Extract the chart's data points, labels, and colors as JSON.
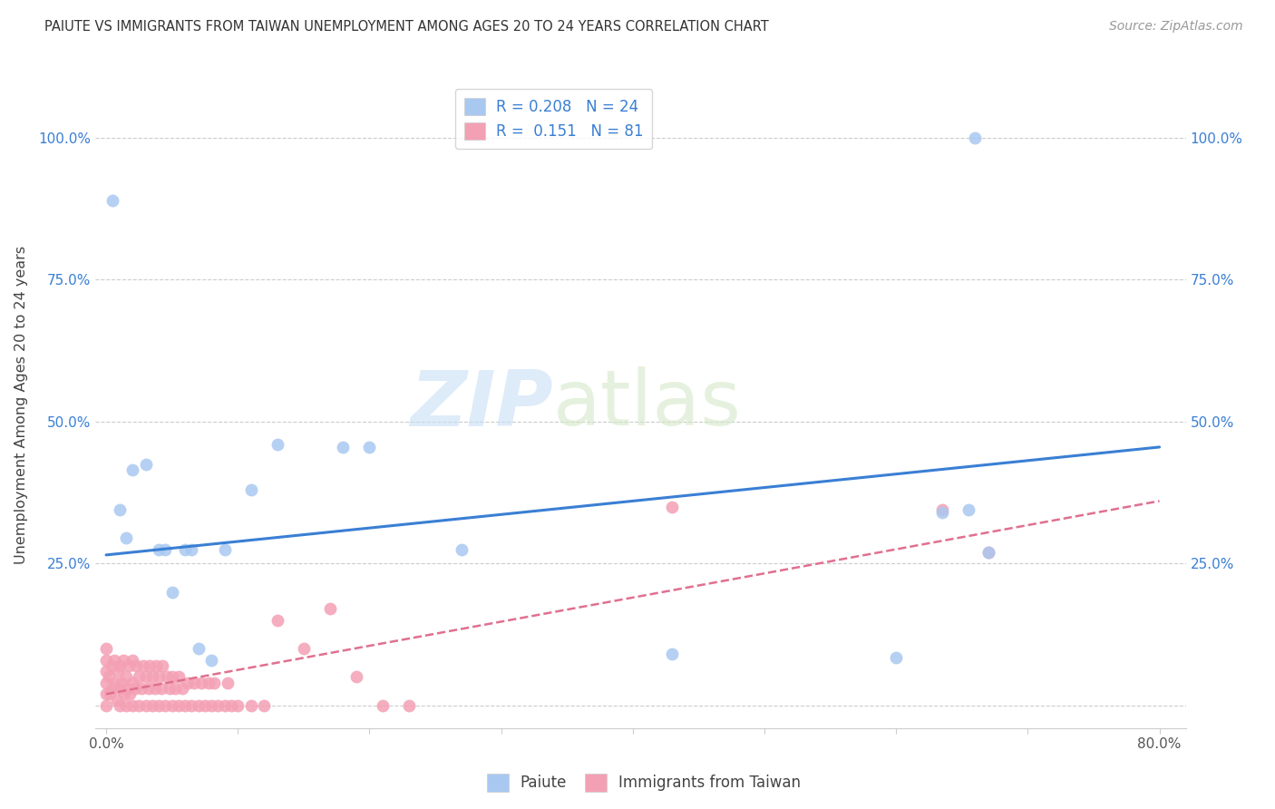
{
  "title": "PAIUTE VS IMMIGRANTS FROM TAIWAN UNEMPLOYMENT AMONG AGES 20 TO 24 YEARS CORRELATION CHART",
  "source": "Source: ZipAtlas.com",
  "ylabel": "Unemployment Among Ages 20 to 24 years",
  "xlim": [
    -0.008,
    0.82
  ],
  "ylim": [
    -0.04,
    1.1
  ],
  "paiute_R": 0.208,
  "paiute_N": 24,
  "taiwan_R": 0.151,
  "taiwan_N": 81,
  "paiute_dot_color": "#a8c8f0",
  "taiwan_dot_color": "#f4a0b4",
  "paiute_line_color": "#3a7fd4",
  "taiwan_line_color": "#e07090",
  "watermark_zip": "ZIP",
  "watermark_atlas": "atlas",
  "blue_line_x0": 0.0,
  "blue_line_y0": 0.265,
  "blue_line_x1": 0.8,
  "blue_line_y1": 0.455,
  "pink_line_x0": 0.0,
  "pink_line_y0": 0.02,
  "pink_line_x1": 0.8,
  "pink_line_y1": 0.36,
  "paiute_x": [
    0.005,
    0.01,
    0.015,
    0.02,
    0.03,
    0.04,
    0.045,
    0.05,
    0.06,
    0.065,
    0.07,
    0.08,
    0.09,
    0.11,
    0.13,
    0.18,
    0.2,
    0.27,
    0.43,
    0.6,
    0.635,
    0.655,
    0.66,
    0.67
  ],
  "paiute_y": [
    0.89,
    0.345,
    0.295,
    0.415,
    0.425,
    0.275,
    0.275,
    0.2,
    0.275,
    0.275,
    0.1,
    0.08,
    0.275,
    0.38,
    0.46,
    0.455,
    0.455,
    0.275,
    0.09,
    0.085,
    0.34,
    0.345,
    1.0,
    0.27
  ],
  "taiwan_x": [
    0.0,
    0.0,
    0.0,
    0.0,
    0.0,
    0.0,
    0.002,
    0.003,
    0.004,
    0.005,
    0.006,
    0.007,
    0.008,
    0.009,
    0.01,
    0.01,
    0.01,
    0.012,
    0.013,
    0.014,
    0.015,
    0.015,
    0.016,
    0.017,
    0.018,
    0.02,
    0.02,
    0.02,
    0.022,
    0.023,
    0.025,
    0.025,
    0.027,
    0.028,
    0.03,
    0.03,
    0.032,
    0.033,
    0.035,
    0.035,
    0.037,
    0.038,
    0.04,
    0.04,
    0.042,
    0.043,
    0.045,
    0.046,
    0.048,
    0.05,
    0.05,
    0.052,
    0.055,
    0.055,
    0.058,
    0.06,
    0.062,
    0.065,
    0.067,
    0.07,
    0.072,
    0.075,
    0.078,
    0.08,
    0.082,
    0.085,
    0.09,
    0.092,
    0.095,
    0.1,
    0.11,
    0.12,
    0.13,
    0.15,
    0.17,
    0.19,
    0.21,
    0.23,
    0.43,
    0.635,
    0.67
  ],
  "taiwan_y": [
    0.0,
    0.02,
    0.04,
    0.06,
    0.08,
    0.1,
    0.05,
    0.02,
    0.07,
    0.03,
    0.08,
    0.04,
    0.01,
    0.06,
    0.0,
    0.03,
    0.07,
    0.04,
    0.08,
    0.02,
    0.0,
    0.05,
    0.03,
    0.07,
    0.02,
    0.0,
    0.04,
    0.08,
    0.03,
    0.07,
    0.0,
    0.05,
    0.03,
    0.07,
    0.0,
    0.05,
    0.03,
    0.07,
    0.0,
    0.05,
    0.03,
    0.07,
    0.0,
    0.05,
    0.03,
    0.07,
    0.0,
    0.05,
    0.03,
    0.0,
    0.05,
    0.03,
    0.0,
    0.05,
    0.03,
    0.0,
    0.04,
    0.0,
    0.04,
    0.0,
    0.04,
    0.0,
    0.04,
    0.0,
    0.04,
    0.0,
    0.0,
    0.04,
    0.0,
    0.0,
    0.0,
    0.0,
    0.15,
    0.1,
    0.17,
    0.05,
    0.0,
    0.0,
    0.35,
    0.345,
    0.27
  ]
}
